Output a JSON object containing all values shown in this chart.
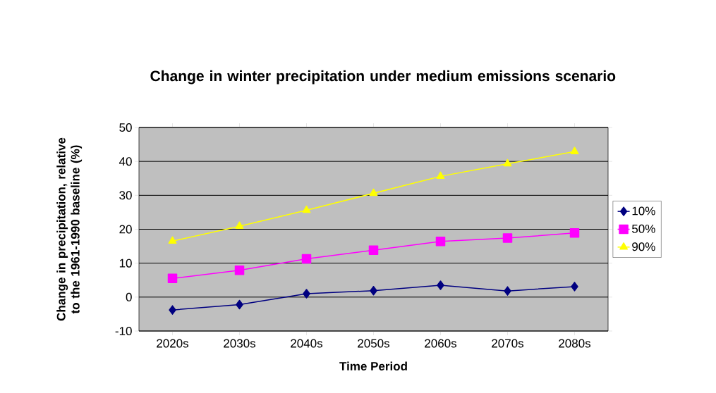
{
  "chart_data": {
    "type": "line",
    "title": "Change in winter precipitation under medium emissions scenario",
    "xlabel": "Time Period",
    "ylabel": "Change in precipitation, relative to the 1961-1990 baseline (%)",
    "categories": [
      "2020s",
      "2030s",
      "2040s",
      "2050s",
      "2060s",
      "2070s",
      "2080s"
    ],
    "series": [
      {
        "name": "10%",
        "color": "#000080",
        "marker": "diamond",
        "values": [
          -3.8,
          -2.2,
          1.0,
          1.9,
          3.5,
          1.8,
          3.1
        ]
      },
      {
        "name": "50%",
        "color": "#ff00ff",
        "marker": "square",
        "values": [
          5.5,
          7.9,
          11.3,
          13.8,
          16.4,
          17.4,
          18.9
        ]
      },
      {
        "name": "90%",
        "color": "#ffff00",
        "marker": "triangle",
        "values": [
          16.5,
          20.9,
          25.6,
          30.6,
          35.6,
          39.3,
          42.9
        ]
      }
    ],
    "ylim": [
      -10,
      50
    ],
    "yticks": [
      -10,
      0,
      10,
      20,
      30,
      40,
      50
    ],
    "grid": "y",
    "legend": "right"
  }
}
